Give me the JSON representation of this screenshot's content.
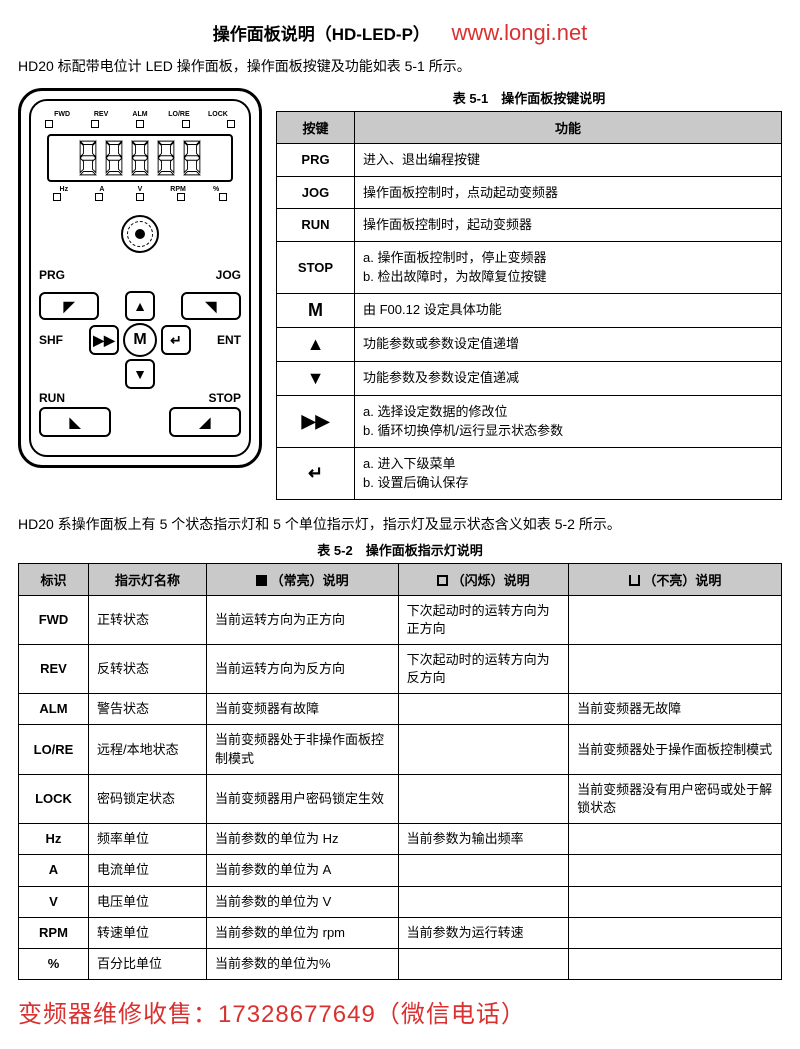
{
  "title": "操作面板说明（HD-LED-P）",
  "url": "www.longi.net",
  "intro1": "HD20 标配带电位计 LED 操作面板，操作面板按键及功能如表 5-1 所示。",
  "panel": {
    "status_leds": [
      "FWD",
      "REV",
      "ALM",
      "LO/RE",
      "LOCK"
    ],
    "unit_leds": [
      "Hz",
      "A",
      "V",
      "RPM",
      "%"
    ],
    "keys": {
      "prg": "PRG",
      "jog": "JOG",
      "shf": "SHF",
      "ent": "ENT",
      "run": "RUN",
      "stop": "STOP",
      "m": "M"
    }
  },
  "table51": {
    "caption": "表 5-1　操作面板按键说明",
    "headers": [
      "按键",
      "功能"
    ],
    "rows": [
      {
        "key": "PRG",
        "desc": "进入、退出编程按键"
      },
      {
        "key": "JOG",
        "desc": "操作面板控制时，点动起动变频器"
      },
      {
        "key": "RUN",
        "desc": "操作面板控制时，起动变频器"
      },
      {
        "key": "STOP",
        "desc": "a. 操作面板控制时，停止变频器\nb. 检出故障时，为故障复位按键"
      },
      {
        "key": "M",
        "sym": true,
        "desc": "由 F00.12 设定具体功能"
      },
      {
        "key": "▲",
        "sym": true,
        "desc": "功能参数或参数设定值递增"
      },
      {
        "key": "▼",
        "sym": true,
        "desc": "功能参数及参数设定值递减"
      },
      {
        "key": "▶▶",
        "sym": true,
        "desc": "a. 选择设定数据的修改位\nb. 循环切换停机/运行显示状态参数"
      },
      {
        "key": "↵",
        "sym": true,
        "desc": "a. 进入下级菜单\nb. 设置后确认保存"
      }
    ]
  },
  "intro2": "HD20 系操作面板上有 5 个状态指示灯和 5 个单位指示灯，指示灯及显示状态含义如表 5-2 所示。",
  "table52": {
    "caption": "表 5-2　操作面板指示灯说明",
    "headers": {
      "c0": "标识",
      "c1": "指示灯名称",
      "c2_pre": "（常亮）说明",
      "c3_pre": "（闪烁）说明",
      "c4_pre": "（不亮）说明"
    },
    "rows": [
      {
        "id": "FWD",
        "name": "正转状态",
        "on": "当前运转方向为正方向",
        "blink": "下次起动时的运转方向为正方向",
        "off": ""
      },
      {
        "id": "REV",
        "name": "反转状态",
        "on": "当前运转方向为反方向",
        "blink": "下次起动时的运转方向为反方向",
        "off": ""
      },
      {
        "id": "ALM",
        "name": "警告状态",
        "on": "当前变频器有故障",
        "blink": "",
        "off": "当前变频器无故障"
      },
      {
        "id": "LO/RE",
        "name": "远程/本地状态",
        "on": "当前变频器处于非操作面板控制模式",
        "blink": "",
        "off": "当前变频器处于操作面板控制模式"
      },
      {
        "id": "LOCK",
        "name": "密码锁定状态",
        "on": "当前变频器用户密码锁定生效",
        "blink": "",
        "off": "当前变频器没有用户密码或处于解锁状态"
      },
      {
        "id": "Hz",
        "name": "频率单位",
        "on": "当前参数的单位为 Hz",
        "blink": "当前参数为输出频率",
        "off": ""
      },
      {
        "id": "A",
        "name": "电流单位",
        "on": "当前参数的单位为 A",
        "blink": "",
        "off": ""
      },
      {
        "id": "V",
        "name": "电压单位",
        "on": "当前参数的单位为 V",
        "blink": "",
        "off": ""
      },
      {
        "id": "RPM",
        "name": "转速单位",
        "on": "当前参数的单位为 rpm",
        "blink": "当前参数为运行转速",
        "off": ""
      },
      {
        "id": "%",
        "name": "百分比单位",
        "on": "当前参数的单位为%",
        "blink": "",
        "off": ""
      }
    ]
  },
  "footer": "变频器维修收售：17328677649（微信电话）"
}
